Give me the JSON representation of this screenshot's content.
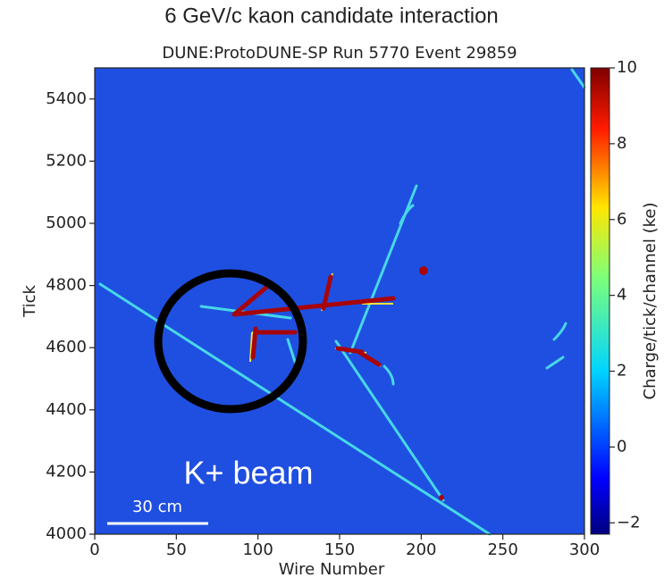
{
  "chart_data": {
    "type": "image",
    "title": "6 GeV/c kaon candidate interaction",
    "subtitle": "DUNE:ProtoDUNE-SP Run 5770 Event 29859",
    "x_label": "Wire Number",
    "y_label": "Tick",
    "xlim": [
      0,
      300
    ],
    "xticks": [
      0,
      50,
      100,
      150,
      200,
      250,
      300
    ],
    "ylim": [
      4000,
      5500
    ],
    "yticks": [
      4000,
      4200,
      4400,
      4600,
      4800,
      5000,
      5200,
      5400
    ],
    "colorbar": {
      "label": "Charge/tick/channel (ke)",
      "lim": [
        -2.3,
        10
      ],
      "ticks": [
        {
          "value": -2,
          "label": "−2"
        },
        0,
        2,
        4,
        6,
        8,
        10
      ]
    },
    "annotation": "K+ beam",
    "scale_bar": "30 cm"
  }
}
